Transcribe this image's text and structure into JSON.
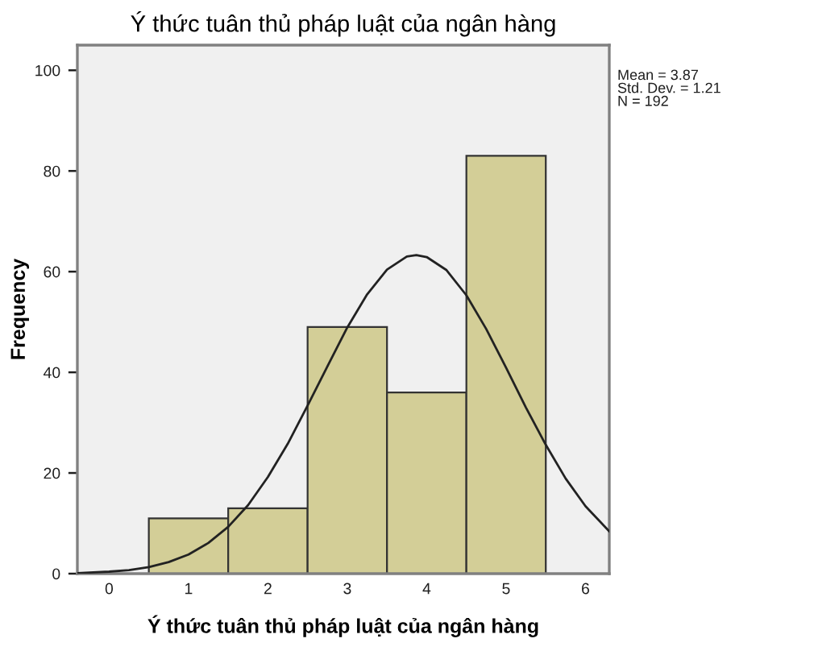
{
  "chart_data": {
    "type": "histogram",
    "title": "Ý thức tuân thủ pháp luật của ngân hàng",
    "xlabel": "Ý thức tuân thủ pháp luật của ngân hàng",
    "ylabel": "Frequency",
    "annotations": [
      "Mean = 3.87",
      "Std. Dev. = 1.21",
      "N = 192"
    ],
    "xlim": [
      -0.4,
      6.3
    ],
    "ylim": [
      0,
      105
    ],
    "xticks": [
      0,
      1,
      2,
      3,
      4,
      5,
      6
    ],
    "yticks": [
      0,
      20,
      40,
      60,
      80,
      100
    ],
    "series": [
      {
        "bins": [
          0.5,
          1.5,
          2.5,
          3.5,
          4.5,
          5.5
        ],
        "values": [
          11,
          13,
          49,
          36,
          83
        ],
        "color": "#d3ce97"
      },
      {
        "type": "line",
        "color": "#222222",
        "x": [
          -0.4,
          0,
          0.25,
          0.5,
          0.75,
          1,
          1.25,
          1.5,
          1.75,
          2,
          2.25,
          2.5,
          2.75,
          3,
          3.25,
          3.5,
          3.75,
          3.87,
          4,
          4.25,
          4.5,
          4.75,
          5,
          5.25,
          5.5,
          5.75,
          6,
          6.3
        ],
        "values": [
          0.1,
          0.4,
          0.7,
          1.3,
          2.3,
          3.8,
          6.1,
          9.3,
          13.6,
          19.2,
          25.8,
          33.4,
          41.2,
          48.9,
          55.5,
          60.4,
          63.0,
          63.3,
          62.9,
          60.3,
          55.3,
          48.6,
          40.9,
          33.0,
          25.6,
          18.9,
          13.4,
          8.4
        ]
      }
    ]
  }
}
